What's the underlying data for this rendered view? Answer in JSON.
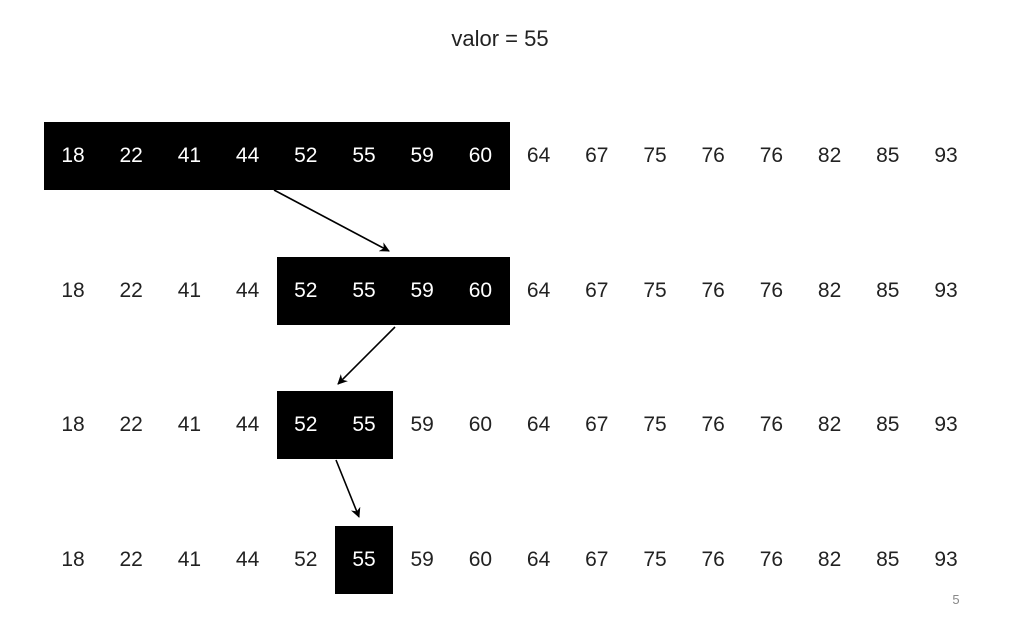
{
  "title": "valor = 55",
  "page_number": "5",
  "colors": {
    "highlight": "#000000",
    "highlight_text": "#ffffff",
    "text": "#222222",
    "arrow": "#000000"
  },
  "array": [
    "18",
    "22",
    "41",
    "44",
    "52",
    "55",
    "59",
    "60",
    "64",
    "67",
    "75",
    "76",
    "76",
    "82",
    "85",
    "93"
  ],
  "steps": [
    {
      "start": 0,
      "end": 7
    },
    {
      "start": 4,
      "end": 7
    },
    {
      "start": 4,
      "end": 5
    },
    {
      "start": 5,
      "end": 5
    }
  ]
}
